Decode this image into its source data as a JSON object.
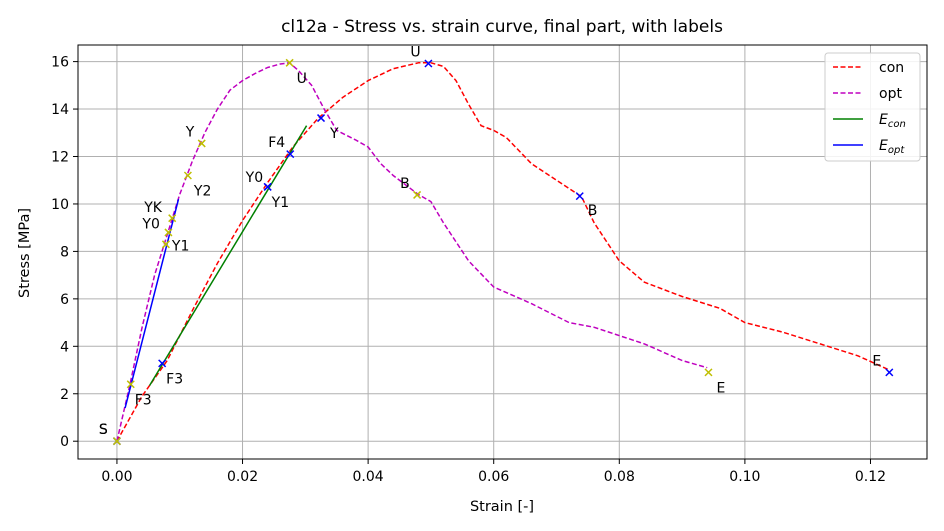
{
  "chart_data": {
    "type": "line",
    "title": "cl12a - Stress vs. strain curve, final part, with labels",
    "xlabel": "Strain [-]",
    "ylabel": "Stress [MPa]",
    "xlim": [
      -0.0062,
      0.129
    ],
    "ylim": [
      -0.75,
      16.7
    ],
    "xticks": [
      0.0,
      0.02,
      0.04,
      0.06,
      0.08,
      0.1,
      0.12
    ],
    "xtick_labels": [
      "0.00",
      "0.02",
      "0.04",
      "0.06",
      "0.08",
      "0.10",
      "0.12"
    ],
    "yticks": [
      0,
      2,
      4,
      6,
      8,
      10,
      12,
      14,
      16
    ],
    "ytick_labels": [
      "0",
      "2",
      "4",
      "6",
      "8",
      "10",
      "12",
      "14",
      "16"
    ],
    "grid": true,
    "legend_position": "top-right",
    "series": [
      {
        "name": "con",
        "style": "dashed",
        "color": "#ff0000",
        "x": [
          0.0,
          0.004,
          0.008,
          0.012,
          0.016,
          0.02,
          0.024,
          0.028,
          0.032,
          0.036,
          0.04,
          0.044,
          0.048,
          0.05,
          0.052,
          0.054,
          0.056,
          0.058,
          0.06,
          0.062,
          0.066,
          0.07,
          0.074,
          0.076,
          0.08,
          0.084,
          0.09,
          0.096,
          0.1,
          0.106,
          0.112,
          0.118,
          0.123
        ],
        "y": [
          0.0,
          1.9,
          3.4,
          5.5,
          7.5,
          9.3,
          10.9,
          12.4,
          13.6,
          14.5,
          15.2,
          15.7,
          15.95,
          15.95,
          15.8,
          15.2,
          14.2,
          13.3,
          13.1,
          12.8,
          11.7,
          11.0,
          10.3,
          9.2,
          7.6,
          6.7,
          6.1,
          5.6,
          5.0,
          4.6,
          4.1,
          3.6,
          3.0
        ]
      },
      {
        "name": "opt",
        "style": "dashed",
        "color": "#bf00bf",
        "x": [
          0.0,
          0.002,
          0.004,
          0.006,
          0.008,
          0.01,
          0.012,
          0.014,
          0.016,
          0.018,
          0.02,
          0.022,
          0.024,
          0.026,
          0.0275,
          0.029,
          0.031,
          0.033,
          0.035,
          0.038,
          0.04,
          0.042,
          0.044,
          0.046,
          0.048,
          0.05,
          0.052,
          0.056,
          0.06,
          0.066,
          0.072,
          0.076,
          0.084,
          0.09,
          0.094
        ],
        "y": [
          0.0,
          2.3,
          4.8,
          7.0,
          8.7,
          10.4,
          11.8,
          13.0,
          14.0,
          14.8,
          15.2,
          15.5,
          15.75,
          15.9,
          15.95,
          15.6,
          15.0,
          14.0,
          13.1,
          12.7,
          12.4,
          11.7,
          11.2,
          10.8,
          10.4,
          10.1,
          9.2,
          7.6,
          6.5,
          5.8,
          5.0,
          4.8,
          4.1,
          3.4,
          3.1
        ]
      },
      {
        "name": "E_con",
        "legend_label": "E",
        "legend_sub": "con",
        "style": "solid",
        "color": "#008000",
        "x": [
          0.0052,
          0.0302
        ],
        "y": [
          2.35,
          13.3
        ]
      },
      {
        "name": "E_opt",
        "legend_label": "E",
        "legend_sub": "opt",
        "style": "solid",
        "color": "#0000ff",
        "x": [
          0.0013,
          0.0098
        ],
        "y": [
          1.4,
          10.2
        ]
      }
    ],
    "markers": [
      {
        "group": "con",
        "color": "#0000ff",
        "x": 0.0,
        "y": 0.0,
        "label": "S",
        "dx": -18,
        "dy": -7
      },
      {
        "group": "con",
        "color": "#0000ff",
        "x": 0.0072,
        "y": 3.28,
        "label": "F3",
        "dx": 4,
        "dy": 20
      },
      {
        "group": "con",
        "color": "#0000ff",
        "x": 0.024,
        "y": 10.72,
        "label": "Y0",
        "dx": -22,
        "dy": -5
      },
      {
        "group": "con",
        "color": "#0000ff",
        "x": 0.024,
        "y": 10.72,
        "label": "Y1",
        "dx": 4,
        "dy": 20
      },
      {
        "group": "con",
        "color": "#0000ff",
        "x": 0.0276,
        "y": 12.1,
        "label": "F4",
        "dx": -22,
        "dy": -7
      },
      {
        "group": "con",
        "color": "#0000ff",
        "x": 0.0325,
        "y": 13.62,
        "label": "Y",
        "dx": 9,
        "dy": 20
      },
      {
        "group": "con",
        "color": "#0000ff",
        "x": 0.0496,
        "y": 15.92,
        "label": "U",
        "dx": -18,
        "dy": -7
      },
      {
        "group": "con",
        "color": "#0000ff",
        "x": 0.0737,
        "y": 10.33,
        "label": "B",
        "dx": 8,
        "dy": 19
      },
      {
        "group": "con",
        "color": "#0000ff",
        "x": 0.123,
        "y": 2.9,
        "label": "E",
        "dx": -17,
        "dy": -7
      },
      {
        "group": "opt",
        "color": "#bfbf00",
        "x": 0.0,
        "y": 0.0,
        "label": "S",
        "dx": -18,
        "dy": -7
      },
      {
        "group": "opt",
        "color": "#bfbf00",
        "x": 0.0022,
        "y": 2.4,
        "label": "F3",
        "dx": 4,
        "dy": 20
      },
      {
        "group": "opt",
        "color": "#bfbf00",
        "x": 0.0078,
        "y": 8.3,
        "label": "Y1",
        "dx": 6,
        "dy": 6
      },
      {
        "group": "opt",
        "color": "#bfbf00",
        "x": 0.0082,
        "y": 8.8,
        "label": "Y0",
        "dx": -26,
        "dy": -4
      },
      {
        "group": "opt",
        "color": "#bfbf00",
        "x": 0.0088,
        "y": 9.4,
        "label": "YK",
        "dx": -28,
        "dy": -6
      },
      {
        "group": "opt",
        "color": "#bfbf00",
        "x": 0.0113,
        "y": 11.2,
        "label": "Y2",
        "dx": 6,
        "dy": 20
      },
      {
        "group": "opt",
        "color": "#bfbf00",
        "x": 0.0135,
        "y": 12.55,
        "label": "Y",
        "dx": -16,
        "dy": -7
      },
      {
        "group": "opt",
        "color": "#bfbf00",
        "x": 0.0275,
        "y": 15.95,
        "label": "U",
        "dx": 7,
        "dy": 20
      },
      {
        "group": "opt",
        "color": "#bfbf00",
        "x": 0.0478,
        "y": 10.38,
        "label": "B",
        "dx": -17,
        "dy": -7
      },
      {
        "group": "opt",
        "color": "#bfbf00",
        "x": 0.0942,
        "y": 2.9,
        "label": "E",
        "dx": 8,
        "dy": 20
      }
    ]
  }
}
